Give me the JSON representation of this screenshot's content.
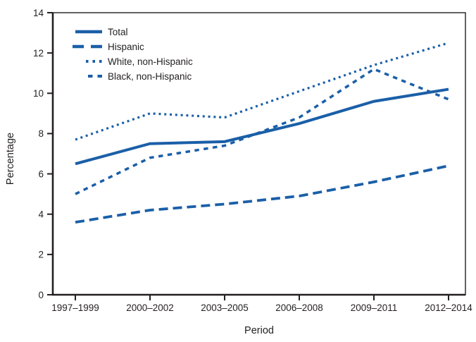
{
  "chart_data": {
    "type": "line",
    "title": "",
    "xlabel": "Period",
    "ylabel": "Percentage",
    "ylim": [
      0,
      14
    ],
    "yticks": [
      0,
      2,
      4,
      6,
      8,
      10,
      12,
      14
    ],
    "grid": false,
    "legend_position": "top-left-inside",
    "categories": [
      "1997–1999",
      "2000–2002",
      "2003–2005",
      "2006–2008",
      "2009–2011",
      "2012–2014"
    ],
    "series": [
      {
        "name": "Total",
        "style": "solid",
        "values": [
          6.5,
          7.5,
          7.6,
          8.5,
          9.6,
          10.2
        ]
      },
      {
        "name": "Hispanic",
        "style": "long-dash",
        "values": [
          3.6,
          4.2,
          4.5,
          4.9,
          5.6,
          6.4
        ]
      },
      {
        "name": "White, non-Hispanic",
        "style": "dotted",
        "values": [
          7.7,
          9.0,
          8.8,
          10.1,
          11.4,
          12.5
        ]
      },
      {
        "name": "Black, non-Hispanic",
        "style": "medium-dash",
        "values": [
          5.0,
          6.8,
          7.4,
          8.8,
          11.2,
          9.7
        ]
      }
    ],
    "colors": {
      "line": "#1a5fa8",
      "axis": "#231f20",
      "text": "#231f20",
      "background": "#ffffff"
    }
  }
}
